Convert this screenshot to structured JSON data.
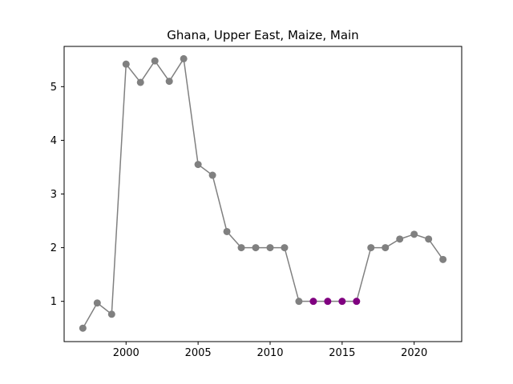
{
  "chart_data": {
    "type": "line",
    "title": "Ghana, Upper East, Maize, Main",
    "xlabel": "",
    "ylabel": "",
    "xlim": [
      1995.7,
      2023.3
    ],
    "ylim": [
      0.25,
      5.75
    ],
    "xticks": [
      2000,
      2005,
      2010,
      2015,
      2020
    ],
    "yticks": [
      1,
      2,
      3,
      4,
      5
    ],
    "grid": false,
    "colors": {
      "line": "#808080",
      "point": "#808080",
      "highlight": "#800080"
    },
    "x": [
      1997,
      1998,
      1999,
      2000,
      2001,
      2002,
      2003,
      2004,
      2005,
      2006,
      2007,
      2008,
      2009,
      2010,
      2011,
      2012,
      2013,
      2014,
      2015,
      2016,
      2017,
      2018,
      2019,
      2020,
      2021,
      2022
    ],
    "y": [
      0.5,
      0.97,
      0.76,
      5.42,
      5.08,
      5.48,
      5.1,
      5.52,
      3.55,
      3.35,
      2.3,
      2.0,
      2.0,
      2.0,
      2.0,
      1.0,
      1.0,
      1.0,
      1.0,
      1.0,
      2.0,
      2.0,
      2.16,
      2.25,
      2.16,
      1.78
    ],
    "highlight_x": [
      2013,
      2014,
      2015,
      2016
    ]
  }
}
